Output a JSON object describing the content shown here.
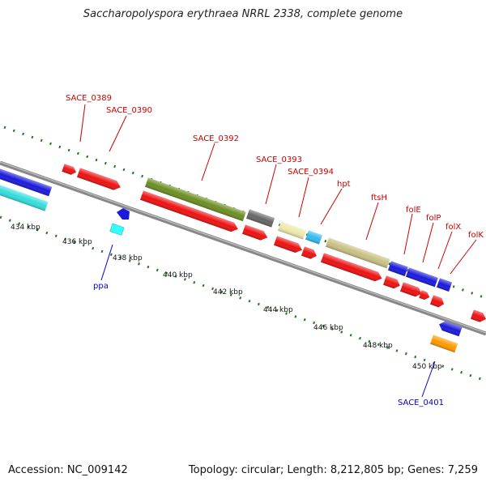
{
  "title": "Saccharopolyspora erythraea NRRL 2338, complete genome",
  "footer": {
    "accession": "Accession: NC_009142",
    "summary": "Topology: circular; Length: 8,212,805 bp; Genes: 7,259"
  },
  "ticks": [
    "434 kbp",
    "436 kbp",
    "438 kbp",
    "440 kbp",
    "442 kbp",
    "444 kbp",
    "446 kbp",
    "448 kbp",
    "450 kbp"
  ],
  "genes_top": [
    {
      "id": "SACE_0389",
      "label": "SACE_0389"
    },
    {
      "id": "SACE_0390",
      "label": "SACE_0390"
    },
    {
      "id": "SACE_0392",
      "label": "SACE_0392"
    },
    {
      "id": "SACE_0393",
      "label": "SACE_0393"
    },
    {
      "id": "SACE_0394",
      "label": "SACE_0394"
    },
    {
      "id": "hpt",
      "label": "hpt"
    },
    {
      "id": "ftsH",
      "label": "ftsH"
    },
    {
      "id": "folE",
      "label": "folE"
    },
    {
      "id": "folP",
      "label": "folP"
    },
    {
      "id": "folX",
      "label": "folX"
    },
    {
      "id": "folK",
      "label": "folK"
    }
  ],
  "genes_bottom": [
    {
      "id": "ppa",
      "label": "ppa"
    },
    {
      "id": "SACE_0401",
      "label": "SACE_0401"
    }
  ],
  "colors": {
    "label_top": "#cc0000",
    "label_bottom": "#0000cc",
    "red": "#ee1111",
    "olive": "#6b8e23",
    "gray": "#666666",
    "khaki": "#eee8aa",
    "sky": "#33bbee",
    "tan": "#c8c083",
    "blue": "#1a1add",
    "cyan": "#33dddd",
    "orange": "#ff9900",
    "backbone": "#888888",
    "tick": "#227722"
  }
}
